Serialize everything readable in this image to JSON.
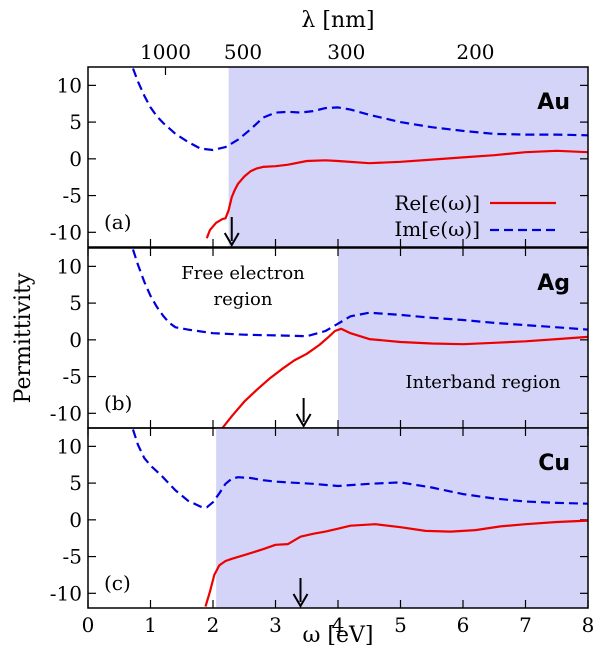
{
  "figure": {
    "ylabel": "Permittivity",
    "xlabel": "ω [eV]",
    "top_axis_label": "λ [nm]",
    "top_ticks": [
      {
        "label": "1000",
        "ev": 1.2398
      },
      {
        "label": "500",
        "ev": 2.4797
      },
      {
        "label": "300",
        "ev": 4.1328
      },
      {
        "label": "200",
        "ev": 6.1992
      }
    ],
    "x_ticks": [
      0,
      1,
      2,
      3,
      4,
      5,
      6,
      7,
      8
    ],
    "y_ticks": [
      10,
      5,
      0,
      -5,
      -10
    ],
    "xlim": [
      0,
      8
    ],
    "ylim": [
      -12,
      12.5
    ],
    "legend": {
      "re": "Re[ϵ(ω)]",
      "im": "Im[ϵ(ω)]"
    },
    "colors": {
      "re": "#ee0000",
      "im": "#0000dd",
      "shade": "#d4d4f8",
      "axis": "#000000"
    }
  },
  "chart_data": [
    {
      "type": "line",
      "metal": "Au",
      "panel_label": "(a)",
      "shade_from_ev": 2.25,
      "arrow_ev": 2.3,
      "annotations": [],
      "series": [
        {
          "name": "Re[ϵ(ω)]",
          "key": "re",
          "x": [
            1.9,
            1.95,
            2.05,
            2.15,
            2.2,
            2.25,
            2.3,
            2.35,
            2.4,
            2.5,
            2.6,
            2.7,
            2.8,
            3.0,
            3.2,
            3.5,
            3.8,
            4.0,
            4.5,
            5.0,
            5.5,
            6.0,
            6.5,
            7.0,
            7.5,
            8.0
          ],
          "y": [
            -10.8,
            -9.7,
            -8.7,
            -8.2,
            -8.1,
            -7.0,
            -5.2,
            -4.2,
            -3.4,
            -2.4,
            -1.7,
            -1.3,
            -1.1,
            -1.0,
            -0.8,
            -0.3,
            -0.2,
            -0.3,
            -0.6,
            -0.4,
            -0.1,
            0.2,
            0.5,
            0.9,
            1.1,
            0.9
          ]
        },
        {
          "name": "Im[ϵ(ω)]",
          "key": "im",
          "x": [
            0.72,
            0.8,
            0.9,
            1.0,
            1.1,
            1.2,
            1.4,
            1.6,
            1.8,
            2.0,
            2.2,
            2.4,
            2.6,
            2.8,
            3.0,
            3.2,
            3.4,
            3.6,
            3.8,
            4.0,
            4.2,
            4.5,
            5.0,
            5.5,
            6.0,
            6.5,
            7.0,
            7.5,
            8.0
          ],
          "y": [
            12.3,
            10.5,
            8.6,
            7.0,
            5.8,
            4.9,
            3.4,
            2.3,
            1.4,
            1.2,
            1.6,
            2.6,
            4.0,
            5.6,
            6.3,
            6.4,
            6.3,
            6.5,
            6.9,
            7.0,
            6.7,
            6.0,
            5.0,
            4.3,
            3.8,
            3.4,
            3.3,
            3.3,
            3.2
          ]
        }
      ]
    },
    {
      "type": "line",
      "metal": "Ag",
      "panel_label": "(b)",
      "shade_from_ev": 4.0,
      "arrow_ev": 3.45,
      "annotations": [
        "Free electron",
        "region",
        "Interband region"
      ],
      "series": [
        {
          "name": "Re[ϵ(ω)]",
          "key": "re",
          "x": [
            2.15,
            2.3,
            2.5,
            2.7,
            2.9,
            3.1,
            3.3,
            3.5,
            3.7,
            3.85,
            3.95,
            4.05,
            4.2,
            4.5,
            5.0,
            5.5,
            6.0,
            6.5,
            7.0,
            7.5,
            8.0
          ],
          "y": [
            -12.0,
            -10.4,
            -8.4,
            -6.8,
            -5.3,
            -4.0,
            -2.8,
            -1.9,
            -0.7,
            0.4,
            1.2,
            1.5,
            0.9,
            0.1,
            -0.3,
            -0.5,
            -0.6,
            -0.4,
            -0.2,
            0.1,
            0.4
          ]
        },
        {
          "name": "Im[ϵ(ω)]",
          "key": "im",
          "x": [
            0.72,
            0.8,
            0.9,
            1.0,
            1.1,
            1.2,
            1.3,
            1.4,
            1.6,
            2.0,
            2.5,
            3.0,
            3.5,
            3.8,
            4.0,
            4.2,
            4.5,
            5.0,
            5.5,
            6.0,
            6.5,
            7.0,
            7.5,
            8.0
          ],
          "y": [
            12.3,
            10.2,
            7.9,
            6.0,
            4.5,
            3.3,
            2.3,
            1.7,
            1.4,
            0.9,
            0.7,
            0.6,
            0.5,
            1.2,
            2.2,
            3.2,
            3.7,
            3.4,
            3.0,
            2.7,
            2.3,
            2.0,
            1.7,
            1.4
          ]
        }
      ]
    },
    {
      "type": "line",
      "metal": "Cu",
      "panel_label": "(c)",
      "shade_from_ev": 2.05,
      "arrow_ev": 3.4,
      "annotations": [],
      "series": [
        {
          "name": "Re[ϵ(ω)]",
          "key": "re",
          "x": [
            1.88,
            1.95,
            2.02,
            2.1,
            2.2,
            2.3,
            2.5,
            2.8,
            3.0,
            3.2,
            3.4,
            3.6,
            3.8,
            4.0,
            4.2,
            4.6,
            5.0,
            5.4,
            5.8,
            6.2,
            6.6,
            7.0,
            7.5,
            8.0
          ],
          "y": [
            -11.8,
            -9.8,
            -7.5,
            -6.2,
            -5.6,
            -5.3,
            -4.8,
            -4.0,
            -3.4,
            -3.3,
            -2.3,
            -1.9,
            -1.6,
            -1.2,
            -0.8,
            -0.6,
            -1.0,
            -1.5,
            -1.6,
            -1.4,
            -0.9,
            -0.6,
            -0.3,
            -0.1
          ]
        },
        {
          "name": "Im[ϵ(ω)]",
          "key": "im",
          "x": [
            0.72,
            0.8,
            0.9,
            1.0,
            1.1,
            1.2,
            1.4,
            1.6,
            1.8,
            1.9,
            2.0,
            2.1,
            2.2,
            2.3,
            2.4,
            2.6,
            2.8,
            3.0,
            3.2,
            3.6,
            4.0,
            4.5,
            5.0,
            5.5,
            6.0,
            6.5,
            7.0,
            7.5,
            8.0
          ],
          "y": [
            12.3,
            10.2,
            8.4,
            7.4,
            6.6,
            5.8,
            4.0,
            2.6,
            1.8,
            1.7,
            2.4,
            3.6,
            4.9,
            5.6,
            5.8,
            5.7,
            5.4,
            5.2,
            5.1,
            4.9,
            4.6,
            4.9,
            5.1,
            4.4,
            3.5,
            2.9,
            2.5,
            2.3,
            2.2
          ]
        }
      ]
    }
  ]
}
